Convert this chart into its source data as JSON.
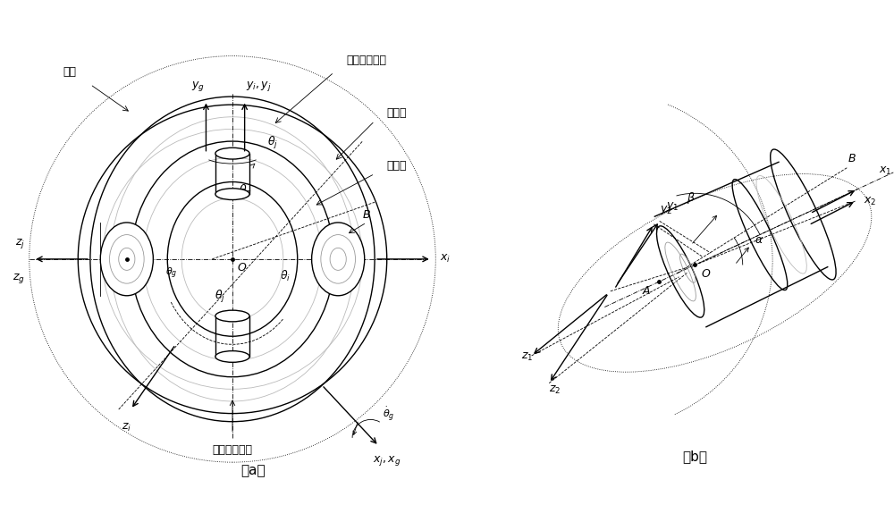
{
  "bg_color": "#ffffff",
  "fig_width": 10.0,
  "fig_height": 5.65,
  "lw_main": 1.0,
  "lw_thin": 0.6,
  "lw_dot": 0.6,
  "black": "#000000",
  "gray": "#999999",
  "lgray": "#bbbbbb",
  "labels": {
    "jizuo": "基座",
    "outer_motor": "外框架电机端",
    "outer_frame": "外框架",
    "inner_frame": "内框架",
    "inner_motor": "内框架电机端",
    "cap_a": "（a）",
    "cap_b": "（b）"
  },
  "fs": 9,
  "fs_cap": 11,
  "fs_chi": 9
}
